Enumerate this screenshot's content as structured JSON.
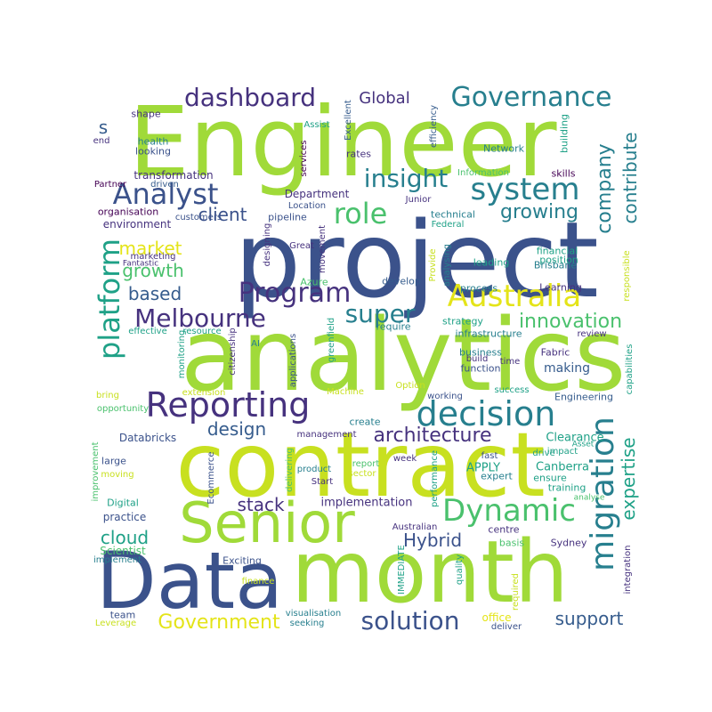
{
  "palette": {
    "dark_purple": "#46327e",
    "navy": "#3b528b",
    "blue": "#365c8d",
    "teal_blue": "#277f8e",
    "teal": "#1fa187",
    "green": "#4ac16d",
    "lime": "#a0da39",
    "yellow_green": "#c8e020",
    "yellow": "#e4e419",
    "purple": "#440154"
  },
  "words": [
    {
      "text": "Engineer",
      "color": "lime"
    },
    {
      "text": "project",
      "color": "navy"
    },
    {
      "text": "analytics",
      "color": "lime"
    },
    {
      "text": "contract",
      "color": "yellow_green"
    },
    {
      "text": "Data",
      "color": "navy"
    },
    {
      "text": "month",
      "color": "lime"
    },
    {
      "text": "Senior",
      "color": "lime"
    },
    {
      "text": "Australia",
      "color": "yellow"
    },
    {
      "text": "decision",
      "color": "teal_blue"
    },
    {
      "text": "migration",
      "color": "teal_blue"
    },
    {
      "text": "Dynamic",
      "color": "green"
    },
    {
      "text": "Reporting",
      "color": "dark_purple"
    },
    {
      "text": "system",
      "color": "teal_blue"
    },
    {
      "text": "Governance",
      "color": "teal_blue"
    },
    {
      "text": "Analyst",
      "color": "navy"
    },
    {
      "text": "platform",
      "color": "teal"
    },
    {
      "text": "Program",
      "color": "dark_purple"
    },
    {
      "text": "Melbourne",
      "color": "dark_purple"
    },
    {
      "text": "role",
      "color": "green"
    },
    {
      "text": "dashboard",
      "color": "dark_purple"
    },
    {
      "text": "insight",
      "color": "teal_blue"
    },
    {
      "text": "super",
      "color": "teal_blue"
    },
    {
      "text": "solution",
      "color": "navy"
    },
    {
      "text": "architecture",
      "color": "dark_purple"
    },
    {
      "text": "Government",
      "color": "yellow"
    },
    {
      "text": "growing",
      "color": "teal_blue"
    },
    {
      "text": "company",
      "color": "teal_blue"
    },
    {
      "text": "contribute",
      "color": "teal_blue"
    },
    {
      "text": "innovation",
      "color": "green"
    },
    {
      "text": "expertise",
      "color": "teal"
    },
    {
      "text": "support",
      "color": "blue"
    },
    {
      "text": "Hybrid",
      "color": "navy"
    },
    {
      "text": "stack",
      "color": "dark_purple"
    },
    {
      "text": "cloud",
      "color": "teal"
    },
    {
      "text": "growth",
      "color": "green"
    },
    {
      "text": "client",
      "color": "navy"
    },
    {
      "text": "market",
      "color": "yellow"
    },
    {
      "text": "design",
      "color": "blue"
    },
    {
      "text": "based",
      "color": "blue"
    },
    {
      "text": "Global",
      "color": "dark_purple"
    },
    {
      "text": "s",
      "color": "blue"
    },
    {
      "text": "implementation",
      "color": "dark_purple"
    },
    {
      "text": "Clearance",
      "color": "teal"
    },
    {
      "text": "Canberra",
      "color": "teal"
    },
    {
      "text": "making",
      "color": "blue"
    },
    {
      "text": "APPLY",
      "color": "teal"
    },
    {
      "text": "Databricks",
      "color": "navy"
    },
    {
      "text": "practice",
      "color": "navy"
    },
    {
      "text": "Scientist",
      "color": "green"
    },
    {
      "text": "Exciting",
      "color": "navy"
    },
    {
      "text": "Engineering",
      "color": "blue"
    },
    {
      "text": "Department",
      "color": "dark_purple"
    },
    {
      "text": "environment",
      "color": "dark_purple"
    },
    {
      "text": "transformation",
      "color": "dark_purple"
    },
    {
      "text": "financial",
      "color": "teal"
    },
    {
      "text": "position",
      "color": "teal"
    },
    {
      "text": "Brisbane",
      "color": "teal_blue"
    },
    {
      "text": "Learning",
      "color": "dark_purple"
    },
    {
      "text": "process",
      "color": "teal_blue"
    },
    {
      "text": "strategy",
      "color": "teal"
    },
    {
      "text": "infrastructure",
      "color": "teal_blue"
    },
    {
      "text": "require",
      "color": "teal_blue"
    },
    {
      "text": "pipeline",
      "color": "navy"
    },
    {
      "text": "Location",
      "color": "navy"
    },
    {
      "text": "develop",
      "color": "blue"
    },
    {
      "text": "leading",
      "color": "teal"
    },
    {
      "text": "technical",
      "color": "teal_blue"
    },
    {
      "text": "Federal",
      "color": "teal"
    },
    {
      "text": "Network",
      "color": "teal_blue"
    },
    {
      "text": "rates",
      "color": "dark_purple"
    },
    {
      "text": "Junior",
      "color": "dark_purple"
    },
    {
      "text": "Information",
      "color": "green"
    },
    {
      "text": "skills",
      "color": "purple"
    },
    {
      "text": "building",
      "color": "teal"
    },
    {
      "text": "efficiency",
      "color": "blue"
    },
    {
      "text": "Excellent",
      "color": "blue"
    },
    {
      "text": "Assist",
      "color": "teal"
    },
    {
      "text": "services",
      "color": "purple"
    },
    {
      "text": "health",
      "color": "teal_blue"
    },
    {
      "text": "looking",
      "color": "navy"
    },
    {
      "text": "shape",
      "color": "dark_purple"
    },
    {
      "text": "end",
      "color": "dark_purple"
    },
    {
      "text": "driven",
      "color": "blue"
    },
    {
      "text": "Partner",
      "color": "purple"
    },
    {
      "text": "organisation",
      "color": "purple"
    },
    {
      "text": "customers",
      "color": "navy"
    },
    {
      "text": "marketing",
      "color": "dark_purple"
    },
    {
      "text": "Fantastic",
      "color": "dark_purple"
    },
    {
      "text": "effective",
      "color": "teal"
    },
    {
      "text": "resource",
      "color": "teal"
    },
    {
      "text": "monitoring",
      "color": "teal"
    },
    {
      "text": "citizenship",
      "color": "dark_purple"
    },
    {
      "text": "AI",
      "color": "teal_blue"
    },
    {
      "text": "Azure",
      "color": "green"
    },
    {
      "text": "Great",
      "color": "dark_purple"
    },
    {
      "text": "designing",
      "color": "dark_purple"
    },
    {
      "text": "movement",
      "color": "dark_purple"
    },
    {
      "text": "greenfield",
      "color": "teal"
    },
    {
      "text": "applications",
      "color": "navy"
    },
    {
      "text": "business",
      "color": "teal_blue"
    },
    {
      "text": "build",
      "color": "dark_purple"
    },
    {
      "text": "function",
      "color": "navy"
    },
    {
      "text": "time",
      "color": "dark_purple"
    },
    {
      "text": "Fabric",
      "color": "dark_purple"
    },
    {
      "text": "review",
      "color": "dark_purple"
    },
    {
      "text": "Provide",
      "color": "yellow_green"
    },
    {
      "text": "analysing",
      "color": "teal_blue"
    },
    {
      "text": "responsible",
      "color": "yellow_green"
    },
    {
      "text": "capabilities",
      "color": "teal"
    },
    {
      "text": "bring",
      "color": "yellow_green"
    },
    {
      "text": "extension",
      "color": "yellow_green"
    },
    {
      "text": "Machine",
      "color": "yellow_green"
    },
    {
      "text": "Option",
      "color": "yellow_green"
    },
    {
      "text": "success",
      "color": "teal"
    },
    {
      "text": "working",
      "color": "navy"
    },
    {
      "text": "opportunity",
      "color": "green"
    },
    {
      "text": "improvement",
      "color": "green"
    },
    {
      "text": "large",
      "color": "navy"
    },
    {
      "text": "moving",
      "color": "yellow_green"
    },
    {
      "text": "Digital",
      "color": "teal"
    },
    {
      "text": "Ecommerce",
      "color": "navy"
    },
    {
      "text": "delivering",
      "color": "green"
    },
    {
      "text": "management",
      "color": "dark_purple"
    },
    {
      "text": "create",
      "color": "teal_blue"
    },
    {
      "text": "product",
      "color": "teal_blue"
    },
    {
      "text": "report",
      "color": "green"
    },
    {
      "text": "sector",
      "color": "yellow_green"
    },
    {
      "text": "Start",
      "color": "dark_purple"
    },
    {
      "text": "week",
      "color": "dark_purple"
    },
    {
      "text": "fast",
      "color": "navy"
    },
    {
      "text": "expert",
      "color": "teal_blue"
    },
    {
      "text": "drive",
      "color": "teal"
    },
    {
      "text": "impact",
      "color": "teal"
    },
    {
      "text": "Asset",
      "color": "teal"
    },
    {
      "text": "ensure",
      "color": "teal"
    },
    {
      "text": "training",
      "color": "teal"
    },
    {
      "text": "analyse",
      "color": "green"
    },
    {
      "text": "performance",
      "color": "teal"
    },
    {
      "text": "Australian",
      "color": "dark_purple"
    },
    {
      "text": "centre",
      "color": "dark_purple"
    },
    {
      "text": "basis",
      "color": "green"
    },
    {
      "text": "Sydney",
      "color": "dark_purple"
    },
    {
      "text": "IMMEDIATE",
      "color": "teal"
    },
    {
      "text": "quality",
      "color": "teal"
    },
    {
      "text": "required",
      "color": "yellow_green"
    },
    {
      "text": "integration",
      "color": "dark_purple"
    },
    {
      "text": "implement",
      "color": "teal_blue"
    },
    {
      "text": "finance",
      "color": "yellow_green"
    },
    {
      "text": "team",
      "color": "navy"
    },
    {
      "text": "Leverage",
      "color": "yellow_green"
    },
    {
      "text": "visualisation",
      "color": "teal_blue"
    },
    {
      "text": "seeking",
      "color": "teal_blue"
    },
    {
      "text": "office",
      "color": "yellow"
    },
    {
      "text": "deliver",
      "color": "navy"
    }
  ]
}
